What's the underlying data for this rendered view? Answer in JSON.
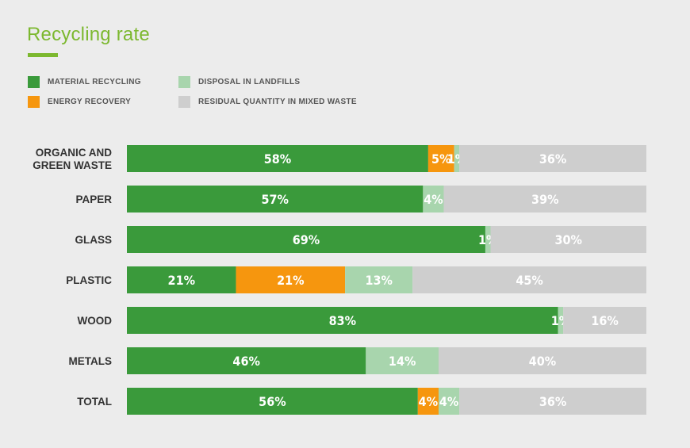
{
  "title": "Recycling rate",
  "colors": {
    "title": "#7cb82f",
    "background": "#ececec",
    "material_recycling": "#3a9a3b",
    "energy_recovery": "#f6960e",
    "disposal_in_landfills": "#a8d5ad",
    "residual_quantity": "#cecece"
  },
  "legend": [
    {
      "label": "MATERIAL RECYCLING",
      "color": "#3a9a3b"
    },
    {
      "label": "ENERGY RECOVERY",
      "color": "#f6960e"
    },
    {
      "label": "DISPOSAL IN LANDFILLS",
      "color": "#a8d5ad"
    },
    {
      "label": "RESIDUAL QUANTITY IN MIXED WASTE",
      "color": "#cecece"
    }
  ],
  "chart_data": {
    "type": "bar",
    "orientation": "horizontal",
    "stacked": true,
    "title": "Recycling rate",
    "legend_position": "top-left",
    "grid": false,
    "xlim": [
      0,
      100
    ],
    "unit": "%",
    "categories": [
      [
        "ORGANIC AND",
        "GREEN WASTE"
      ],
      [
        "PAPER"
      ],
      [
        "GLASS"
      ],
      [
        "PLASTIC"
      ],
      [
        "WOOD"
      ],
      [
        "METALS"
      ],
      [
        "TOTAL"
      ]
    ],
    "series": [
      {
        "name": "MATERIAL RECYCLING",
        "color": "#3a9a3b",
        "values": [
          58,
          57,
          69,
          21,
          83,
          46,
          56
        ]
      },
      {
        "name": "ENERGY RECOVERY",
        "color": "#f6960e",
        "values": [
          5,
          0,
          0,
          21,
          0,
          0,
          4
        ]
      },
      {
        "name": "DISPOSAL IN LANDFILLS",
        "color": "#a8d5ad",
        "values": [
          1,
          4,
          1,
          13,
          1,
          14,
          4
        ]
      },
      {
        "name": "RESIDUAL QUANTITY IN MIXED WASTE",
        "color": "#cecece",
        "values": [
          36,
          39,
          30,
          45,
          16,
          40,
          36
        ]
      }
    ],
    "data_labels": [
      [
        "58%",
        "5%",
        "1%",
        "36%"
      ],
      [
        "57%",
        "",
        "4%",
        "39%"
      ],
      [
        "69%",
        "",
        "1%",
        "30%"
      ],
      [
        "21%",
        "21%",
        "13%",
        "45%"
      ],
      [
        "83%",
        "",
        "1%",
        "16%"
      ],
      [
        "46%",
        "",
        "14%",
        "40%"
      ],
      [
        "56%",
        "4%",
        "4%",
        "36%"
      ]
    ]
  }
}
